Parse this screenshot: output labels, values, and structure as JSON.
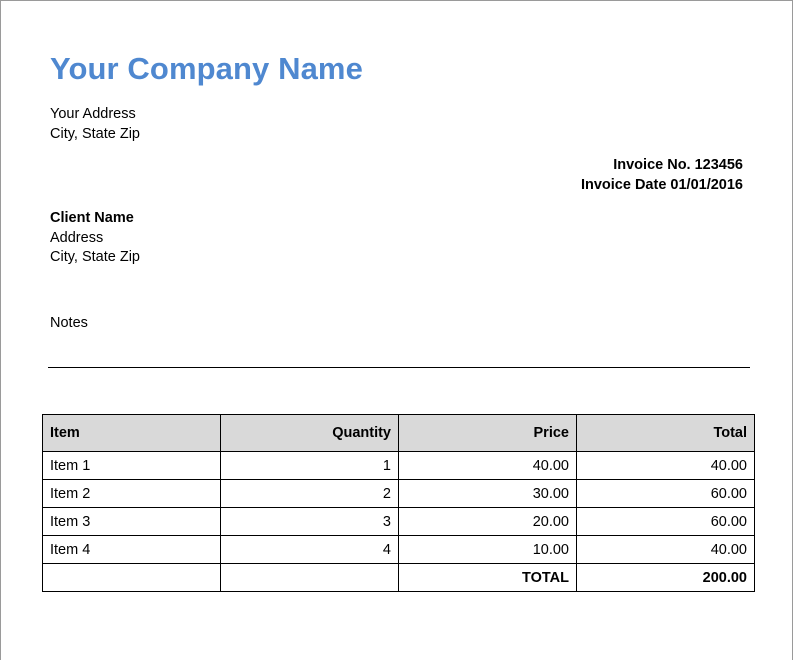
{
  "company": {
    "name": "Your Company Name",
    "address": "Your Address",
    "city_state_zip": "City, State Zip"
  },
  "invoice": {
    "number_line": "Invoice No. 123456",
    "date_line": "Invoice Date 01/01/2016"
  },
  "client": {
    "name": "Client Name",
    "address": "Address",
    "city_state_zip": "City, State Zip"
  },
  "notes_label": "Notes",
  "table": {
    "headers": {
      "item": "Item",
      "quantity": "Quantity",
      "price": "Price",
      "total": "Total"
    },
    "rows": [
      {
        "item": "Item 1",
        "quantity": "1",
        "price": "40.00",
        "total": "40.00"
      },
      {
        "item": "Item 2",
        "quantity": "2",
        "price": "30.00",
        "total": "60.00"
      },
      {
        "item": "Item 3",
        "quantity": "3",
        "price": "20.00",
        "total": "60.00"
      },
      {
        "item": "Item 4",
        "quantity": "4",
        "price": "10.00",
        "total": "40.00"
      }
    ],
    "total_label": "TOTAL",
    "total_value": "200.00"
  },
  "colors": {
    "company_name": "#4f88d0",
    "header_background": "#d9d9d9"
  }
}
